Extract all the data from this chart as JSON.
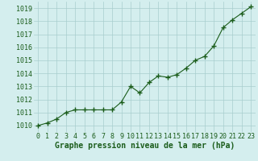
{
  "x": [
    0,
    1,
    2,
    3,
    4,
    5,
    6,
    7,
    8,
    9,
    10,
    11,
    12,
    13,
    14,
    15,
    16,
    17,
    18,
    19,
    20,
    21,
    22,
    23
  ],
  "y": [
    1010.0,
    1010.2,
    1010.5,
    1011.0,
    1011.2,
    1011.2,
    1011.2,
    1011.2,
    1011.2,
    1011.8,
    1013.0,
    1012.5,
    1013.3,
    1013.8,
    1013.7,
    1013.9,
    1014.4,
    1015.0,
    1015.3,
    1016.1,
    1017.5,
    1018.1,
    1018.6,
    1019.1
  ],
  "line_color": "#1a5c1a",
  "marker": "+",
  "marker_size": 4,
  "marker_lw": 1.0,
  "line_width": 0.8,
  "bg_color": "#d4eeee",
  "grid_color": "#a8cece",
  "xlabel": "Graphe pression niveau de la mer (hPa)",
  "xlabel_fontsize": 7,
  "tick_fontsize": 6,
  "xlim": [
    -0.5,
    23.5
  ],
  "ylim": [
    1009.5,
    1019.5
  ],
  "yticks": [
    1010,
    1011,
    1012,
    1013,
    1014,
    1015,
    1016,
    1017,
    1018,
    1019
  ],
  "xticks": [
    0,
    1,
    2,
    3,
    4,
    5,
    6,
    7,
    8,
    9,
    10,
    11,
    12,
    13,
    14,
    15,
    16,
    17,
    18,
    19,
    20,
    21,
    22,
    23
  ]
}
